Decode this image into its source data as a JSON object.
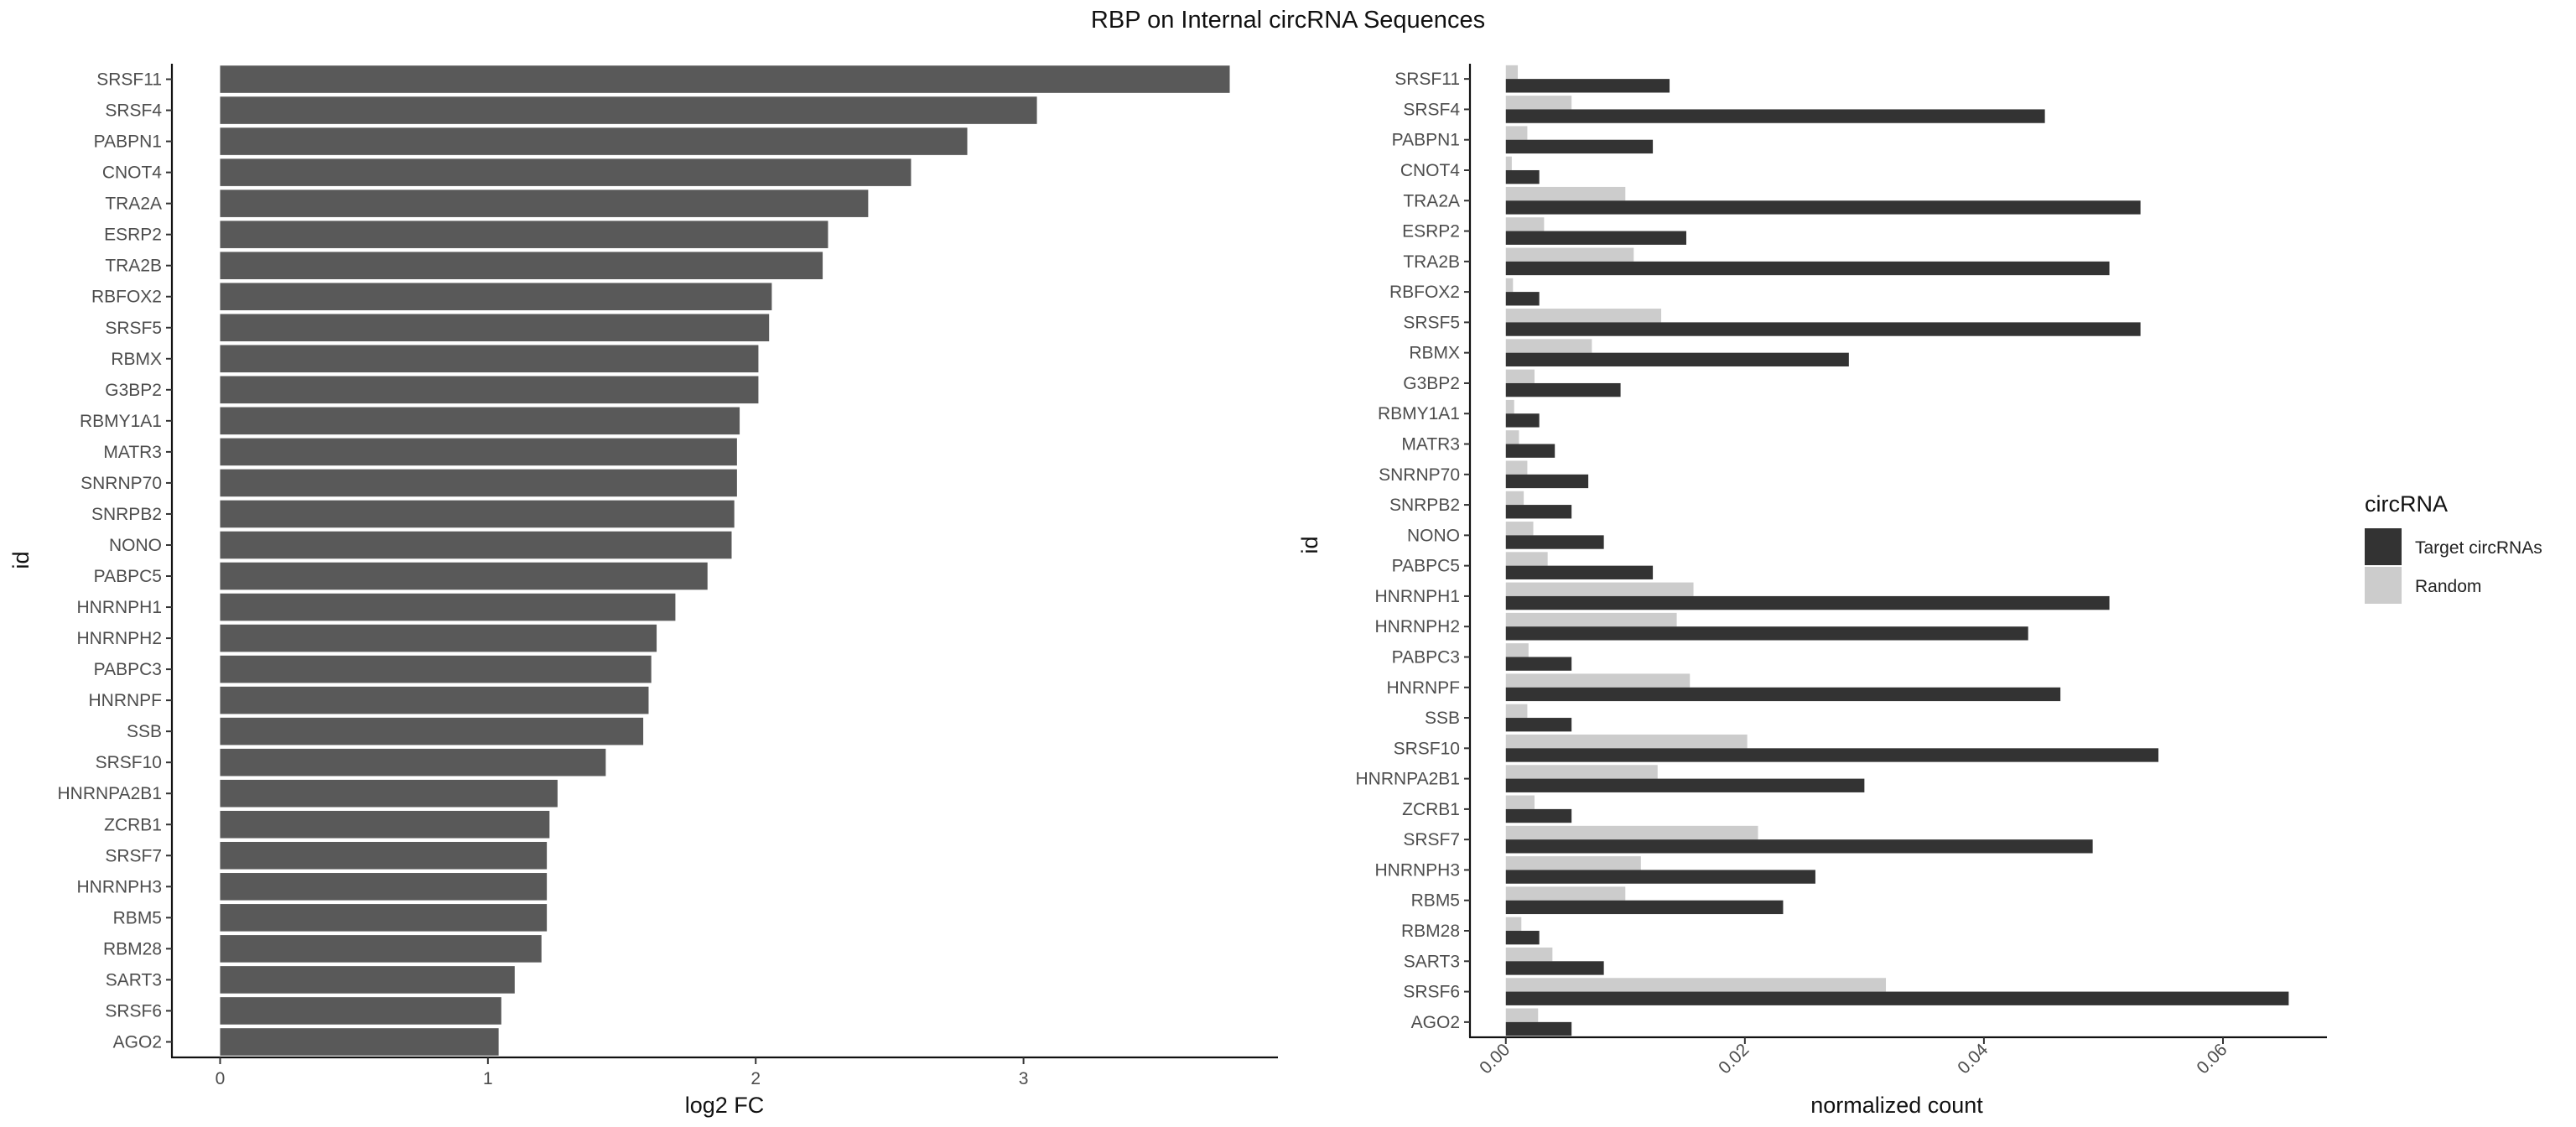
{
  "chart_data": [
    {
      "type": "bar",
      "orientation": "horizontal",
      "title": "RBP on Internal circRNA Sequences",
      "xlabel": "log2 FC",
      "ylabel": "id",
      "xlim": [
        -0.18,
        3.95
      ],
      "xticks": [
        0,
        1,
        2,
        3
      ],
      "grid": false,
      "categories": [
        "SRSF11",
        "SRSF4",
        "PABPN1",
        "CNOT4",
        "TRA2A",
        "ESRP2",
        "TRA2B",
        "RBFOX2",
        "SRSF5",
        "RBMX",
        "G3BP2",
        "RBMY1A1",
        "MATR3",
        "SNRNP70",
        "SNRPB2",
        "NONO",
        "PABPC5",
        "HNRNPH1",
        "HNRNPH2",
        "PABPC3",
        "HNRNPF",
        "SSB",
        "SRSF10",
        "HNRNPA2B1",
        "ZCRB1",
        "SRSF7",
        "HNRNPH3",
        "RBM5",
        "RBM28",
        "SART3",
        "SRSF6",
        "AGO2"
      ],
      "values": [
        3.77,
        3.05,
        2.79,
        2.58,
        2.42,
        2.27,
        2.25,
        2.06,
        2.05,
        2.01,
        2.01,
        1.94,
        1.93,
        1.93,
        1.92,
        1.91,
        1.82,
        1.7,
        1.63,
        1.61,
        1.6,
        1.58,
        1.44,
        1.26,
        1.23,
        1.22,
        1.22,
        1.22,
        1.2,
        1.1,
        1.05,
        1.04
      ],
      "bar_color": "#595959"
    },
    {
      "type": "bar",
      "orientation": "horizontal",
      "xlabel": "normalized count",
      "ylabel": "id",
      "xlim": [
        -0.003,
        0.0687
      ],
      "xticks": [
        0.0,
        0.02,
        0.04,
        0.06
      ],
      "xtick_labels": [
        "0.00",
        "0.02",
        "0.04",
        "0.06"
      ],
      "grid": false,
      "categories": [
        "SRSF11",
        "SRSF4",
        "PABPN1",
        "CNOT4",
        "TRA2A",
        "ESRP2",
        "TRA2B",
        "RBFOX2",
        "SRSF5",
        "RBMX",
        "G3BP2",
        "RBMY1A1",
        "MATR3",
        "SNRNP70",
        "SNRPB2",
        "NONO",
        "PABPC5",
        "HNRNPH1",
        "HNRNPH2",
        "PABPC3",
        "HNRNPF",
        "SSB",
        "SRSF10",
        "HNRNPA2B1",
        "ZCRB1",
        "SRSF7",
        "HNRNPH3",
        "RBM5",
        "RBM28",
        "SART3",
        "SRSF6",
        "AGO2"
      ],
      "series": [
        {
          "name": "Target circRNAs",
          "color": "#333333",
          "values": [
            0.0137,
            0.0451,
            0.0123,
            0.0028,
            0.0531,
            0.0151,
            0.0505,
            0.0028,
            0.0531,
            0.0287,
            0.0096,
            0.0028,
            0.0041,
            0.0069,
            0.0055,
            0.0082,
            0.0123,
            0.0505,
            0.0437,
            0.0055,
            0.0464,
            0.0055,
            0.0546,
            0.03,
            0.0055,
            0.0491,
            0.0259,
            0.0232,
            0.0028,
            0.0082,
            0.0655,
            0.0055
          ]
        },
        {
          "name": "Random",
          "color": "#cccccc",
          "values": [
            0.001,
            0.0055,
            0.0018,
            0.0005,
            0.01,
            0.0032,
            0.0107,
            0.0006,
            0.013,
            0.0072,
            0.0024,
            0.0007,
            0.0011,
            0.0018,
            0.0015,
            0.0023,
            0.0035,
            0.0157,
            0.0143,
            0.0019,
            0.0154,
            0.0018,
            0.0202,
            0.0127,
            0.0024,
            0.0211,
            0.0113,
            0.01,
            0.0013,
            0.0039,
            0.0318,
            0.0027
          ]
        }
      ],
      "legend": {
        "title": "circRNA",
        "position": "right",
        "entries": [
          "Target circRNAs",
          "Random"
        ]
      }
    }
  ]
}
